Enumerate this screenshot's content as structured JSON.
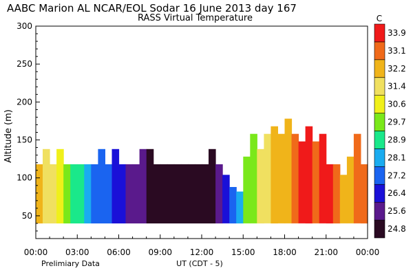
{
  "title": "AABC Marion AL  NCAR/EOL Sodar  16 June 2013  day 167",
  "subtitle": "RASS Virtual Temperature",
  "footer_left": "Prelimiary Data",
  "chart_data": {
    "type": "heatmap",
    "title": "AABC Marion AL  NCAR/EOL Sodar  16 June 2013  day 167",
    "subtitle": "RASS Virtual Temperature",
    "xlabel": "UT  (CDT - 5)",
    "ylabel": "Altitude (m)",
    "xlim": [
      0,
      24
    ],
    "ylim": [
      20,
      300
    ],
    "x_ticks": [
      "00:00",
      "03:00",
      "06:00",
      "09:00",
      "12:00",
      "15:00",
      "18:00",
      "21:00",
      "00:00"
    ],
    "y_ticks": [
      50,
      100,
      150,
      200,
      250,
      300
    ],
    "colorbar": {
      "unit": "C",
      "labels": [
        24.8,
        25.6,
        26.4,
        27.2,
        28.1,
        28.9,
        29.7,
        30.6,
        31.4,
        32.2,
        33.1,
        33.9
      ],
      "colors": [
        "#2a0a22",
        "#5a1a8c",
        "#1a10d8",
        "#1a64f0",
        "#1aacf0",
        "#1ae88a",
        "#7ae81a",
        "#f0f01a",
        "#f0e060",
        "#f0b41a",
        "#f06a1a",
        "#f01a1a"
      ]
    },
    "times": [
      0,
      0.5,
      1,
      1.5,
      2,
      2.5,
      3,
      3.5,
      4,
      4.5,
      5,
      5.5,
      6,
      6.5,
      7,
      7.5,
      8,
      8.5,
      9,
      9.5,
      10,
      10.5,
      11,
      11.5,
      12,
      12.5,
      13,
      13.5,
      14,
      14.5,
      15,
      15.5,
      16,
      16.5,
      17,
      17.5,
      18,
      18.5,
      19,
      19.5,
      20,
      20.5,
      21,
      21.5,
      22,
      22.5,
      23,
      23.5
    ],
    "tops": [
      118,
      138,
      118,
      138,
      118,
      118,
      118,
      118,
      118,
      138,
      118,
      138,
      118,
      118,
      118,
      138,
      138,
      118,
      118,
      118,
      118,
      118,
      118,
      118,
      118,
      138,
      118,
      104,
      88,
      82,
      128,
      158,
      138,
      158,
      168,
      158,
      178,
      158,
      148,
      168,
      148,
      158,
      118,
      118,
      104,
      128,
      158,
      118
    ],
    "temperature": [
      32.1,
      31.8,
      31.3,
      30.6,
      29.8,
      29.1,
      28.6,
      28.1,
      27.7,
      27.3,
      26.9,
      26.6,
      26.3,
      25.9,
      25.6,
      25.3,
      25.0,
      24.8,
      24.8,
      24.8,
      24.8,
      24.8,
      24.8,
      24.8,
      24.8,
      25.1,
      25.6,
      26.4,
      27.2,
      28.1,
      29.3,
      30.2,
      31.0,
      31.6,
      32.2,
      31.9,
      32.6,
      33.1,
      33.5,
      33.9,
      33.1,
      33.9,
      33.5,
      33.1,
      32.6,
      32.2,
      33.1,
      33.3
    ]
  }
}
